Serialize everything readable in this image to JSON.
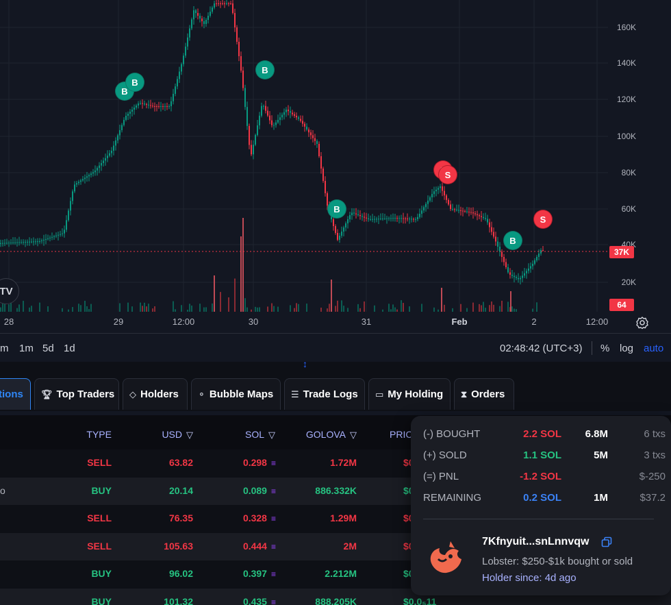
{
  "chart": {
    "price_axis": [
      "160K",
      "140K",
      "120K",
      "100K",
      "80K",
      "60K",
      "40K",
      "20K"
    ],
    "time_axis": [
      "28",
      "29",
      "12:00",
      "30",
      "31",
      "Feb",
      "2",
      "12:00"
    ],
    "current_price_badge": "37K",
    "volume_badge": "64",
    "trade_markers": [
      "B",
      "B",
      "B",
      "B",
      "B",
      "S",
      "S",
      "S"
    ],
    "logo": "TV",
    "colors": {
      "up": "#089981",
      "down": "#f23645",
      "background": "#131722"
    }
  },
  "timeframes": {
    "buttons": [
      "m",
      "1m",
      "5d",
      "1d"
    ],
    "clock": "02:48:42 (UTC+3)",
    "percent": "%",
    "log": "log",
    "auto": "auto"
  },
  "tabs": [
    {
      "label": "tions",
      "icon": "",
      "active": true
    },
    {
      "label": "Top Traders",
      "icon": "trophy-icon"
    },
    {
      "label": "Holders",
      "icon": "diamond-icon"
    },
    {
      "label": "Bubble Maps",
      "icon": "bubbles-icon"
    },
    {
      "label": "Trade Logs",
      "icon": "list-icon"
    },
    {
      "label": "My Holding",
      "icon": "wallet-icon"
    },
    {
      "label": "Orders",
      "icon": "hourglass-icon"
    }
  ],
  "table": {
    "headers": {
      "type": "TYPE",
      "usd": "USD",
      "sol": "SOL",
      "golova": "GOLOVA",
      "price": "PRIC"
    },
    "rows": [
      {
        "lead": "",
        "type": "SELL",
        "usd": "63.82",
        "sol": "0.298",
        "golova": "1.72M",
        "price": "$0"
      },
      {
        "lead": "o",
        "type": "BUY",
        "usd": "20.14",
        "sol": "0.089",
        "golova": "886.332K",
        "price": "$0"
      },
      {
        "lead": "",
        "type": "SELL",
        "usd": "76.35",
        "sol": "0.328",
        "golova": "1.29M",
        "price": "$0"
      },
      {
        "lead": "",
        "type": "SELL",
        "usd": "105.63",
        "sol": "0.444",
        "golova": "2M",
        "price": "$0"
      },
      {
        "lead": "",
        "type": "BUY",
        "usd": "96.02",
        "sol": "0.397",
        "golova": "2.212M",
        "price": "$0"
      },
      {
        "lead": "",
        "type": "BUY",
        "usd": "101.32",
        "sol": "0.435",
        "golova": "888.205K",
        "price": "$0.0₅11"
      }
    ]
  },
  "popup": {
    "stats": [
      {
        "label": "(-) BOUGHT",
        "value": "2.2 SOL",
        "amount": "6.8M",
        "extra": "6 txs",
        "color": "#f23645"
      },
      {
        "label": "(+) SOLD",
        "value": "1.1 SOL",
        "amount": "5M",
        "extra": "3 txs",
        "color": "#26c281"
      },
      {
        "label": "(=) PNL",
        "value": "-1.2 SOL",
        "amount": "",
        "extra": "$-250",
        "color": "#f23645"
      },
      {
        "label": "REMAINING",
        "value": "0.2 SOL",
        "amount": "1M",
        "extra": "$37.2",
        "color": "#3b82f6"
      }
    ],
    "holder": {
      "address": "7Kfnyuit...snLnnvqw",
      "tier": "Lobster: $250-$1k bought or sold",
      "since": "Holder since: 4d ago"
    }
  }
}
